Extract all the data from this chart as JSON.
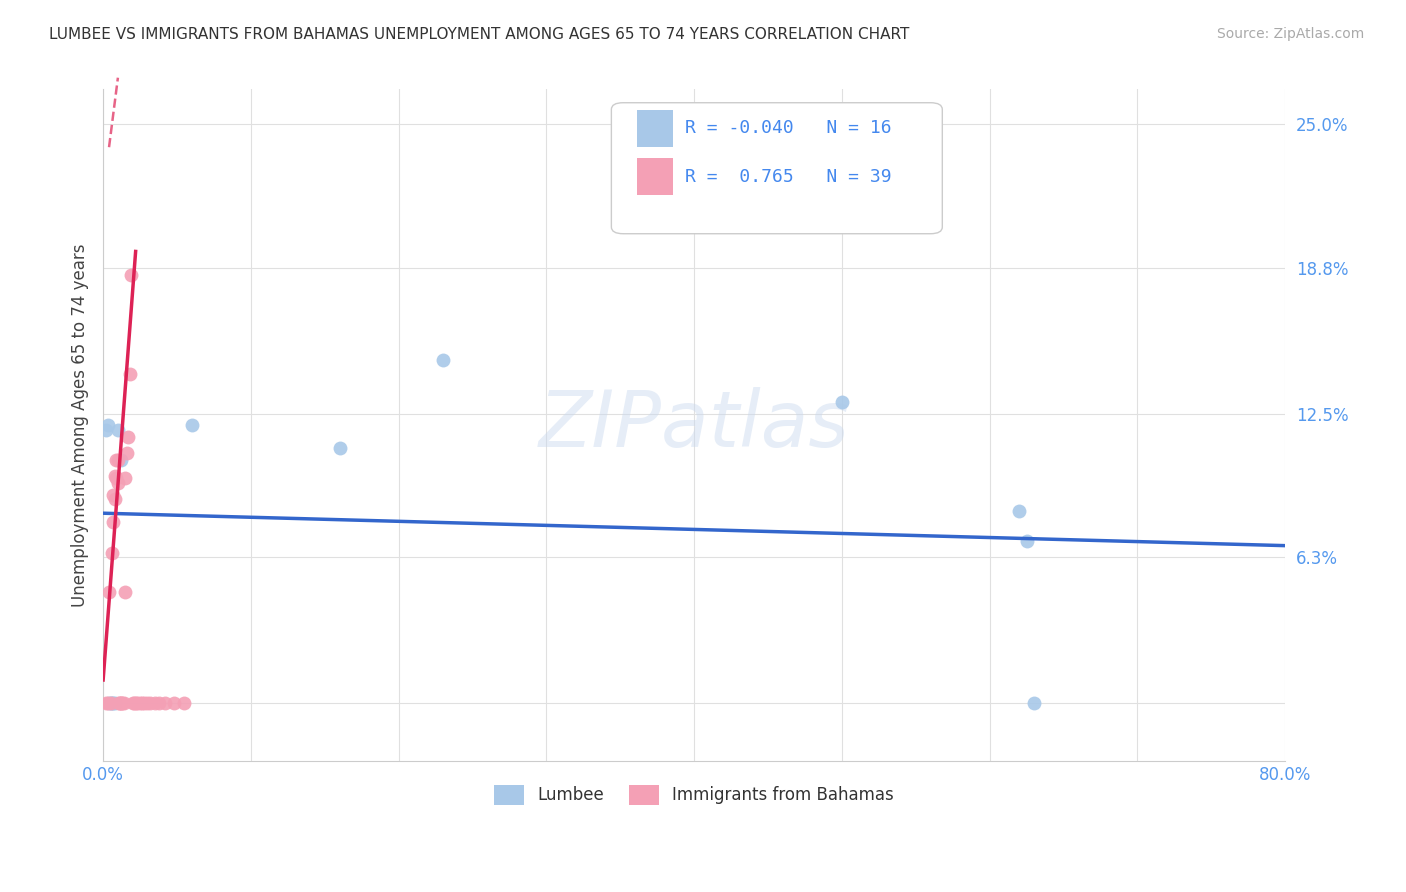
{
  "title": "LUMBEE VS IMMIGRANTS FROM BAHAMAS UNEMPLOYMENT AMONG AGES 65 TO 74 YEARS CORRELATION CHART",
  "source": "Source: ZipAtlas.com",
  "ylabel": "Unemployment Among Ages 65 to 74 years",
  "xlim": [
    0.0,
    0.8
  ],
  "ylim": [
    -0.025,
    0.265
  ],
  "ytick_vals": [
    0.0,
    0.063,
    0.125,
    0.188,
    0.25
  ],
  "ytick_labels": [
    "",
    "6.3%",
    "12.5%",
    "18.8%",
    "25.0%"
  ],
  "xtick_vals": [
    0.0,
    0.1,
    0.2,
    0.3,
    0.4,
    0.5,
    0.6,
    0.7,
    0.8
  ],
  "xtick_labels": [
    "0.0%",
    "",
    "",
    "",
    "",
    "",
    "",
    "",
    "80.0%"
  ],
  "lumbee_color": "#a8c8e8",
  "bahamas_color": "#f4a0b5",
  "trend_lumbee_color": "#3366cc",
  "trend_bahamas_color": "#dd2255",
  "R_lumbee": -0.04,
  "N_lumbee": 16,
  "R_bahamas": 0.765,
  "N_bahamas": 39,
  "lumbee_x": [
    0.002,
    0.003,
    0.004,
    0.005,
    0.006,
    0.007,
    0.008,
    0.01,
    0.012,
    0.06,
    0.16,
    0.23,
    0.5,
    0.62,
    0.625,
    0.63
  ],
  "lumbee_y": [
    0.118,
    0.12,
    0.0,
    0.0,
    0.0,
    0.0,
    0.0,
    0.118,
    0.105,
    0.12,
    0.11,
    0.148,
    0.13,
    0.083,
    0.07,
    0.0
  ],
  "bahamas_x": [
    0.002,
    0.003,
    0.004,
    0.005,
    0.006,
    0.007,
    0.007,
    0.008,
    0.008,
    0.009,
    0.009,
    0.01,
    0.01,
    0.011,
    0.011,
    0.012,
    0.012,
    0.013,
    0.014,
    0.015,
    0.015,
    0.016,
    0.017,
    0.018,
    0.019,
    0.02,
    0.021,
    0.022,
    0.023,
    0.025,
    0.026,
    0.028,
    0.03,
    0.032,
    0.035,
    0.038,
    0.042,
    0.048,
    0.055
  ],
  "bahamas_y": [
    0.0,
    0.0,
    0.048,
    0.0,
    0.065,
    0.078,
    0.09,
    0.088,
    0.098,
    0.097,
    0.105,
    0.095,
    0.105,
    0.0,
    0.0,
    0.0,
    0.0,
    0.0,
    0.0,
    0.048,
    0.097,
    0.108,
    0.115,
    0.142,
    0.185,
    0.0,
    0.0,
    0.0,
    0.0,
    0.0,
    0.0,
    0.0,
    0.0,
    0.0,
    0.0,
    0.0,
    0.0,
    0.0,
    0.0
  ],
  "lumbee_trend": [
    0.0,
    0.8,
    0.082,
    0.068
  ],
  "bahamas_trend_solid": [
    0.0,
    0.022,
    0.01,
    0.195
  ],
  "bahamas_trend_dashed": [
    0.004,
    0.01,
    0.24,
    0.27
  ],
  "marker_size": 100,
  "watermark": "ZIPatlas",
  "background_color": "#ffffff",
  "grid_color": "#e0e0e0"
}
